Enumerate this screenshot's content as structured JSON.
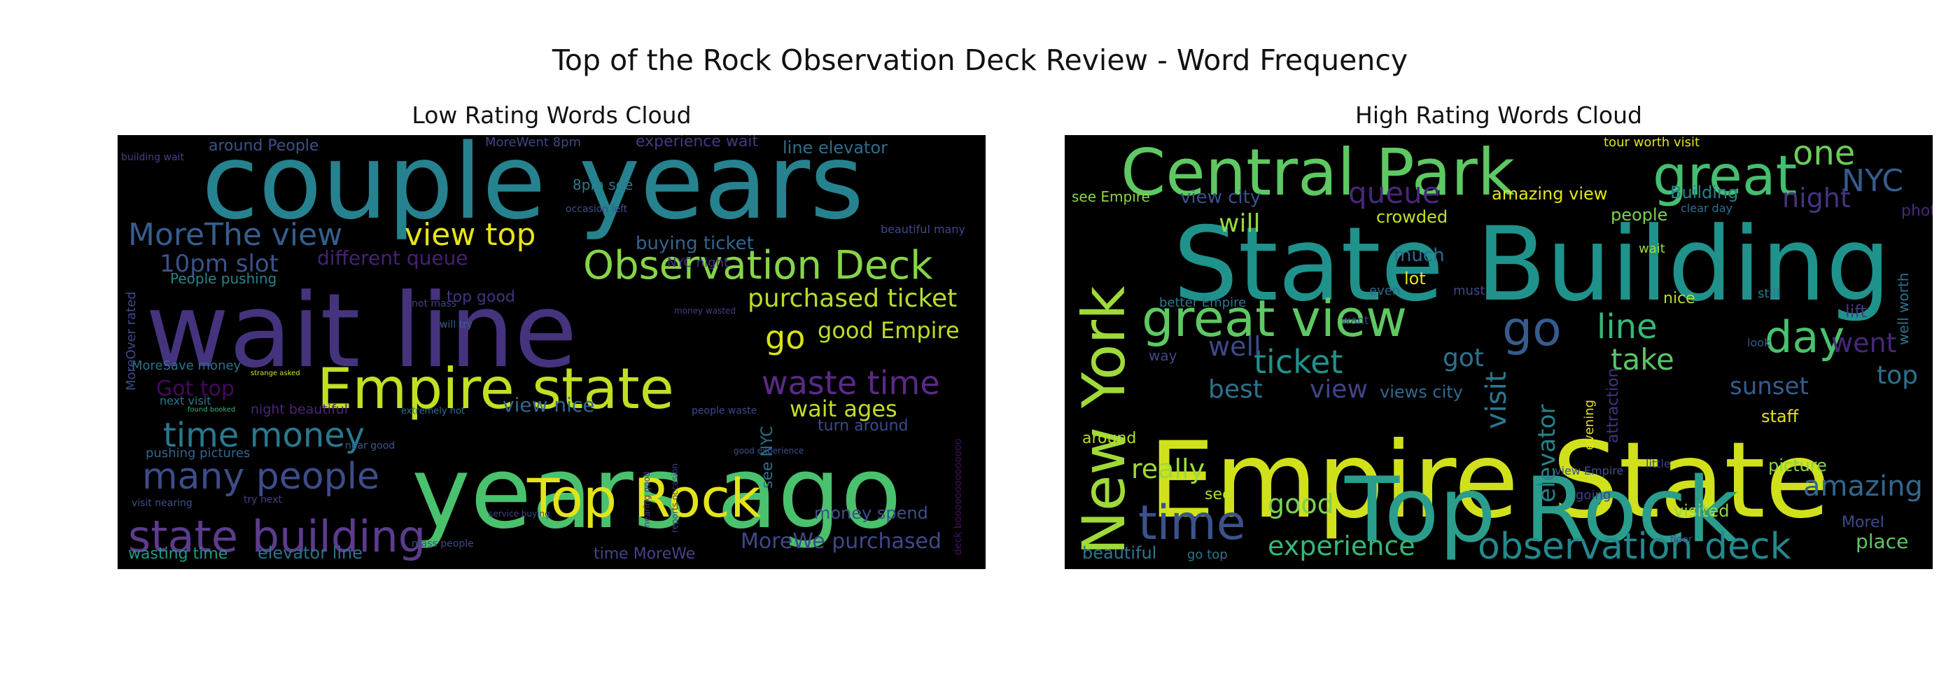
{
  "figure": {
    "suptitle": "Top of the Rock Observation Deck Review - Word Frequency"
  },
  "chart_data": [
    {
      "type": "wordcloud",
      "title": "Low Rating Words Cloud",
      "background": "#000000",
      "palette": [
        "#440154",
        "#46327e",
        "#365c8d",
        "#277f8e",
        "#1fa187",
        "#4ac16d",
        "#a0da39",
        "#fde725"
      ],
      "words": [
        {
          "text": "couple years",
          "weight": 100,
          "color": "#26828e"
        },
        {
          "text": "wait line",
          "weight": 98,
          "color": "#46337e"
        },
        {
          "text": "years ago",
          "weight": 96,
          "color": "#4ac16d"
        },
        {
          "text": "Empire state",
          "weight": 66,
          "color": "#c2df23"
        },
        {
          "text": "Top Rock",
          "weight": 62,
          "color": "#e2e418"
        },
        {
          "text": "Observation Deck",
          "weight": 48,
          "color": "#86d549"
        },
        {
          "text": "state building",
          "weight": 52,
          "color": "#5c3c8c"
        },
        {
          "text": "many people",
          "weight": 44,
          "color": "#3e4c8a"
        },
        {
          "text": "time money",
          "weight": 42,
          "color": "#2a788e"
        },
        {
          "text": "waste time",
          "weight": 38,
          "color": "#5b2a86"
        },
        {
          "text": "view top",
          "weight": 36,
          "color": "#e7e419"
        },
        {
          "text": "MoreThe view",
          "weight": 36,
          "color": "#355e8d"
        },
        {
          "text": "purchased ticket",
          "weight": 32,
          "color": "#b5de2b"
        },
        {
          "text": "go",
          "weight": 38,
          "color": "#d8e219"
        },
        {
          "text": "good Empire",
          "weight": 28,
          "color": "#b8de29"
        },
        {
          "text": "wait ages",
          "weight": 28,
          "color": "#c0df25"
        },
        {
          "text": "10pm slot",
          "weight": 28,
          "color": "#3b528b"
        },
        {
          "text": "different queue",
          "weight": 25,
          "color": "#482173"
        },
        {
          "text": "buying ticket",
          "weight": 23,
          "color": "#32658e"
        },
        {
          "text": "view nice",
          "weight": 23,
          "color": "#31688e"
        },
        {
          "text": "Got top",
          "weight": 25,
          "color": "#46085c"
        },
        {
          "text": "MoreWe purchased",
          "weight": 24,
          "color": "#3f4889"
        },
        {
          "text": "money spend",
          "weight": 20,
          "color": "#3c4f8a"
        },
        {
          "text": "elevator line",
          "weight": 20,
          "color": "#2c718e"
        },
        {
          "text": "wasting time",
          "weight": 19,
          "color": "#1f9a8a"
        },
        {
          "text": "experience wait",
          "weight": 19,
          "color": "#44397f"
        },
        {
          "text": "line elevator",
          "weight": 18,
          "color": "#2f6c8e"
        },
        {
          "text": "around People",
          "weight": 18,
          "color": "#3b528b"
        },
        {
          "text": "People pushing",
          "weight": 17,
          "color": "#25848e"
        },
        {
          "text": "MoreSave money",
          "weight": 17,
          "color": "#2d708e"
        },
        {
          "text": "night beautiful",
          "weight": 16,
          "color": "#4b2478"
        },
        {
          "text": "pushing pictures",
          "weight": 16,
          "color": "#32648e"
        },
        {
          "text": "next visit",
          "weight": 14,
          "color": "#2a788e"
        },
        {
          "text": "visit nearing",
          "weight": 13,
          "color": "#3b528b"
        },
        {
          "text": "time MoreWe",
          "weight": 16,
          "color": "#414487"
        },
        {
          "text": "8pm see",
          "weight": 16,
          "color": "#277e8e"
        },
        {
          "text": "turn around",
          "weight": 15,
          "color": "#3e4a89"
        },
        {
          "text": "top good",
          "weight": 15,
          "color": "#46327e"
        },
        {
          "text": "NYC night",
          "weight": 14,
          "color": "#453781"
        },
        {
          "text": "MoreOver rated",
          "weight": 14,
          "color": "#3e4989"
        },
        {
          "text": "MoreWent 8pm",
          "weight": 14,
          "color": "#3f4788"
        },
        {
          "text": "building wait",
          "weight": 12,
          "color": "#424086"
        },
        {
          "text": "beautiful many",
          "weight": 13,
          "color": "#3f4788"
        },
        {
          "text": "occasion left",
          "weight": 12,
          "color": "#3c508b"
        },
        {
          "text": "not mass",
          "weight": 12,
          "color": "#414487"
        },
        {
          "text": "will try",
          "weight": 12,
          "color": "#33638d"
        },
        {
          "text": "extremely not",
          "weight": 12,
          "color": "#2d708e"
        },
        {
          "text": "mass people",
          "weight": 12,
          "color": "#3e4989"
        },
        {
          "text": "near good",
          "weight": 12,
          "color": "#375a8c"
        },
        {
          "text": "try next",
          "weight": 12,
          "color": "#424086"
        },
        {
          "text": "see NYC",
          "weight": 15,
          "color": "#2c728e"
        },
        {
          "text": "people waste",
          "weight": 12,
          "color": "#3e4a89"
        },
        {
          "text": "nearing good",
          "weight": 12,
          "color": "#453882"
        },
        {
          "text": "reports occasion",
          "weight": 12,
          "color": "#414487"
        },
        {
          "text": "service buying",
          "weight": 11,
          "color": "#3f4788"
        },
        {
          "text": "strange asked",
          "weight": 10,
          "color": "#d8e219"
        },
        {
          "text": "found booked",
          "weight": 10,
          "color": "#35b779"
        },
        {
          "text": "money wasted",
          "weight": 11,
          "color": "#433e85"
        },
        {
          "text": "good experience",
          "weight": 11,
          "color": "#3b528b"
        },
        {
          "text": "deck boooooooooooooo",
          "weight": 10,
          "color": "#471063"
        }
      ]
    },
    {
      "type": "wordcloud",
      "title": "High Rating Words Cloud",
      "background": "#000000",
      "palette": [
        "#440154",
        "#46327e",
        "#365c8d",
        "#277f8e",
        "#1fa187",
        "#4ac16d",
        "#a0da39",
        "#fde725"
      ],
      "words": [
        {
          "text": "Empire State",
          "weight": 100,
          "color": "#d0e11c"
        },
        {
          "text": "State Building",
          "weight": 92,
          "color": "#20928c"
        },
        {
          "text": "Top Rock",
          "weight": 88,
          "color": "#2a9d8c"
        },
        {
          "text": "Central Park",
          "weight": 70,
          "color": "#5ec962"
        },
        {
          "text": "great",
          "weight": 68,
          "color": "#44bf70"
        },
        {
          "text": "New York",
          "weight": 72,
          "color": "#a0da39"
        },
        {
          "text": "great view",
          "weight": 58,
          "color": "#5ec962"
        },
        {
          "text": "time",
          "weight": 52,
          "color": "#3b528b"
        },
        {
          "text": "observation deck",
          "weight": 44,
          "color": "#23898e"
        },
        {
          "text": "go",
          "weight": 56,
          "color": "#365c8d"
        },
        {
          "text": "day",
          "weight": 52,
          "color": "#4ac16d"
        },
        {
          "text": "line",
          "weight": 42,
          "color": "#35b779"
        },
        {
          "text": "one",
          "weight": 40,
          "color": "#6ccd5a"
        },
        {
          "text": "ticket",
          "weight": 38,
          "color": "#21918c"
        },
        {
          "text": "NYC",
          "weight": 36,
          "color": "#365c8d"
        },
        {
          "text": "queue",
          "weight": 36,
          "color": "#482878"
        },
        {
          "text": "visit",
          "weight": 36,
          "color": "#2a788e"
        },
        {
          "text": "experience",
          "weight": 32,
          "color": "#35b779"
        },
        {
          "text": "amazing",
          "weight": 34,
          "color": "#31688e"
        },
        {
          "text": "good",
          "weight": 32,
          "color": "#7ad151"
        },
        {
          "text": "take",
          "weight": 36,
          "color": "#58c765"
        },
        {
          "text": "went",
          "weight": 32,
          "color": "#482878"
        },
        {
          "text": "night",
          "weight": 32,
          "color": "#46337e"
        },
        {
          "text": "top",
          "weight": 30,
          "color": "#2c728e"
        },
        {
          "text": "sunset",
          "weight": 28,
          "color": "#365c8d"
        },
        {
          "text": "really",
          "weight": 30,
          "color": "#a0da39"
        },
        {
          "text": "well",
          "weight": 30,
          "color": "#3e4989"
        },
        {
          "text": "best",
          "weight": 28,
          "color": "#2c728e"
        },
        {
          "text": "view",
          "weight": 28,
          "color": "#414487"
        },
        {
          "text": "got",
          "weight": 30,
          "color": "#2c728e"
        },
        {
          "text": "elevator",
          "weight": 28,
          "color": "#26828e"
        },
        {
          "text": "will",
          "weight": 26,
          "color": "#95d840"
        },
        {
          "text": "view city",
          "weight": 22,
          "color": "#3b528b"
        },
        {
          "text": "amazing view",
          "weight": 20,
          "color": "#e5e419"
        },
        {
          "text": "Building",
          "weight": 20,
          "color": "#26828e"
        },
        {
          "text": "crowded",
          "weight": 20,
          "color": "#c8e020"
        },
        {
          "text": "much",
          "weight": 20,
          "color": "#2f6c8e"
        },
        {
          "text": "lot",
          "weight": 20,
          "color": "#e5e419"
        },
        {
          "text": "place",
          "weight": 24,
          "color": "#5ec962"
        },
        {
          "text": "picture",
          "weight": 20,
          "color": "#86d549"
        },
        {
          "text": "visited",
          "weight": 20,
          "color": "#90d743"
        },
        {
          "text": "staff",
          "weight": 20,
          "color": "#e5e419"
        },
        {
          "text": "people",
          "weight": 18,
          "color": "#7ad151"
        },
        {
          "text": "views city",
          "weight": 18,
          "color": "#31688e"
        },
        {
          "text": "nice",
          "weight": 18,
          "color": "#b5de2b"
        },
        {
          "text": "lift",
          "weight": 18,
          "color": "#443a83"
        },
        {
          "text": "beautiful",
          "weight": 18,
          "color": "#2a788e"
        },
        {
          "text": "see Empire",
          "weight": 16,
          "color": "#8bd646"
        },
        {
          "text": "well worth",
          "weight": 16,
          "color": "#2c728e"
        },
        {
          "text": "tour worth visit",
          "weight": 14,
          "color": "#e5e419"
        },
        {
          "text": "around",
          "weight": 18,
          "color": "#b8de29"
        },
        {
          "text": "MoreI",
          "weight": 18,
          "color": "#3e4989"
        },
        {
          "text": "attraction",
          "weight": 16,
          "color": "#46327e"
        },
        {
          "text": "evening",
          "weight": 14,
          "color": "#e5e419"
        },
        {
          "text": "going",
          "weight": 14,
          "color": "#424086"
        },
        {
          "text": "photo",
          "weight": 18,
          "color": "#482878"
        },
        {
          "text": "see",
          "weight": 16,
          "color": "#b5de2b"
        },
        {
          "text": "way",
          "weight": 14,
          "color": "#3e4989"
        },
        {
          "text": "better Empire",
          "weight": 12,
          "color": "#2a788e"
        },
        {
          "text": "view Empire",
          "weight": 12,
          "color": "#3b528b"
        },
        {
          "text": "clear day",
          "weight": 12,
          "color": "#2d708e"
        },
        {
          "text": "wait",
          "weight": 14,
          "color": "#a0da39"
        },
        {
          "text": "want",
          "weight": 12,
          "color": "#3e4a89"
        },
        {
          "text": "even",
          "weight": 12,
          "color": "#33638d"
        },
        {
          "text": "must",
          "weight": 12,
          "color": "#3e4989"
        },
        {
          "text": "still",
          "weight": 12,
          "color": "#2a788e"
        },
        {
          "text": "look",
          "weight": 12,
          "color": "#375a8c"
        },
        {
          "text": "little",
          "weight": 12,
          "color": "#414487"
        },
        {
          "text": "floor",
          "weight": 12,
          "color": "#3e4989"
        },
        {
          "text": "go top",
          "weight": 12,
          "color": "#2a788e"
        }
      ]
    }
  ]
}
